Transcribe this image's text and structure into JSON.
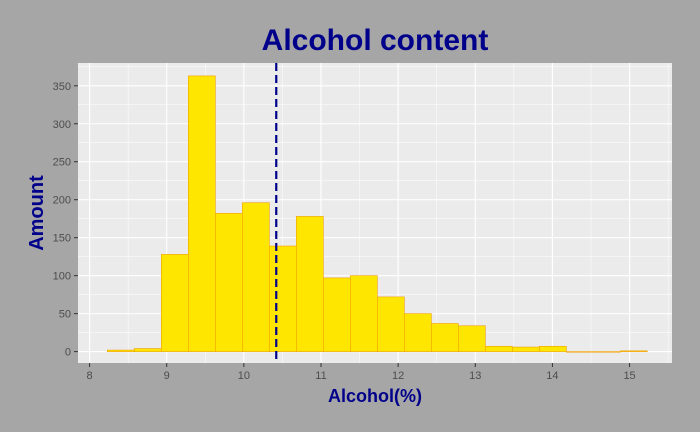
{
  "chart_data": {
    "type": "bar",
    "title": "Alcohol content",
    "xlabel": "Alcohol(%)",
    "ylabel": "Amount",
    "xlim": [
      7.85,
      15.55
    ],
    "ylim": [
      -15,
      380
    ],
    "x_ticks": [
      8,
      9,
      10,
      11,
      12,
      13,
      14,
      15
    ],
    "y_ticks": [
      0,
      50,
      100,
      150,
      200,
      250,
      300,
      350
    ],
    "bin_width": 0.35,
    "bins": [
      {
        "x0": 8.23,
        "x1": 8.58,
        "count": 2
      },
      {
        "x0": 8.58,
        "x1": 8.93,
        "count": 4
      },
      {
        "x0": 8.93,
        "x1": 9.28,
        "count": 128
      },
      {
        "x0": 9.28,
        "x1": 9.63,
        "count": 363
      },
      {
        "x0": 9.63,
        "x1": 9.98,
        "count": 182
      },
      {
        "x0": 9.98,
        "x1": 10.33,
        "count": 196
      },
      {
        "x0": 10.33,
        "x1": 10.68,
        "count": 139
      },
      {
        "x0": 10.68,
        "x1": 11.03,
        "count": 178
      },
      {
        "x0": 11.03,
        "x1": 11.38,
        "count": 97
      },
      {
        "x0": 11.38,
        "x1": 11.73,
        "count": 100
      },
      {
        "x0": 11.73,
        "x1": 12.08,
        "count": 72
      },
      {
        "x0": 12.08,
        "x1": 12.43,
        "count": 50
      },
      {
        "x0": 12.43,
        "x1": 12.78,
        "count": 37
      },
      {
        "x0": 12.78,
        "x1": 13.13,
        "count": 34
      },
      {
        "x0": 13.13,
        "x1": 13.48,
        "count": 7
      },
      {
        "x0": 13.48,
        "x1": 13.83,
        "count": 6
      },
      {
        "x0": 13.83,
        "x1": 14.18,
        "count": 7
      },
      {
        "x0": 14.18,
        "x1": 14.53,
        "count": 0
      },
      {
        "x0": 14.53,
        "x1": 14.88,
        "count": 0
      },
      {
        "x0": 14.88,
        "x1": 15.23,
        "count": 1
      }
    ],
    "mean_line": 10.42,
    "grid": true,
    "legend": "none"
  },
  "colors": {
    "background": "#a6a6a6",
    "panel": "#ebebeb",
    "grid_major": "#ffffff",
    "bar_fill": "#ffe600",
    "bar_stroke": "#f0a000",
    "mean_line": "#00008b",
    "title": "#00008b",
    "axis_title": "#00008b",
    "tick_text": "#4d4d4d"
  }
}
